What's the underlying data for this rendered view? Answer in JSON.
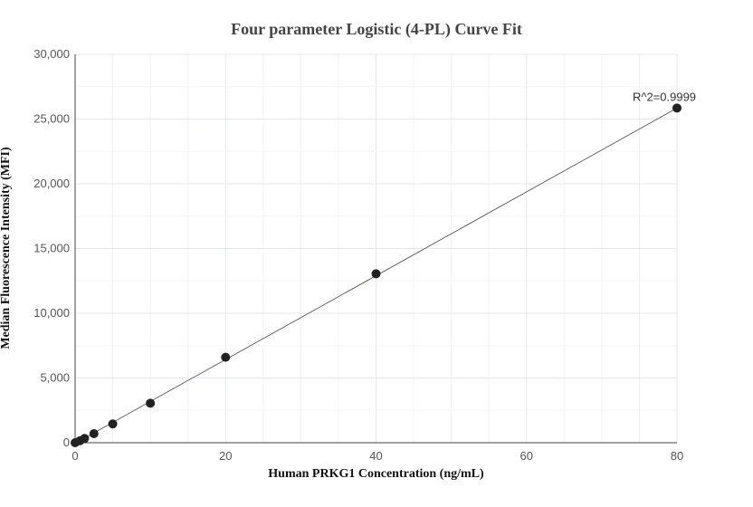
{
  "chart_data": {
    "type": "scatter",
    "title": "Four parameter Logistic (4-PL) Curve Fit",
    "xlabel": "Human PRKG1 Concentration (ng/mL)",
    "ylabel": "Median Fluorescence Intensity (MFI)",
    "xlim": [
      0,
      80
    ],
    "ylim": [
      0,
      30000
    ],
    "xticks": [
      0,
      20,
      40,
      60,
      80
    ],
    "yticks": [
      0,
      5000,
      10000,
      15000,
      20000,
      25000,
      30000
    ],
    "ytick_labels": [
      "0",
      "5,000",
      "10,000",
      "15,000",
      "20,000",
      "25,000",
      "30,000"
    ],
    "grid": true,
    "points": [
      {
        "x": 0,
        "y": 0
      },
      {
        "x": 0.625,
        "y": 150
      },
      {
        "x": 1.25,
        "y": 330
      },
      {
        "x": 2.5,
        "y": 700
      },
      {
        "x": 5,
        "y": 1450
      },
      {
        "x": 10,
        "y": 3050
      },
      {
        "x": 20,
        "y": 6600
      },
      {
        "x": 40,
        "y": 13050
      },
      {
        "x": 80,
        "y": 25850
      }
    ],
    "fit_line": [
      {
        "x": 0,
        "y": -50
      },
      {
        "x": 80,
        "y": 25850
      }
    ],
    "annotation": "R^2=0.9999",
    "colors": {
      "points": "#222222",
      "line": "#444444",
      "grid": "#e6eaf2"
    }
  }
}
